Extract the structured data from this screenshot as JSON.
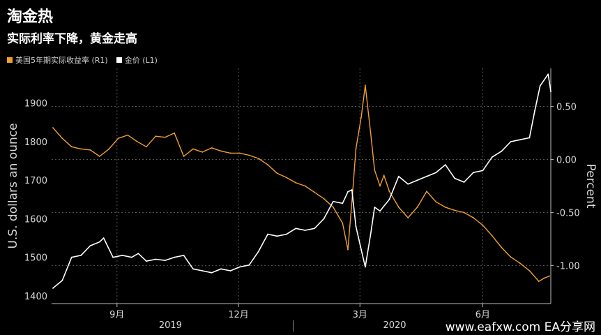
{
  "chart_data": {
    "type": "line",
    "title": "淘金热",
    "subtitle": "实际利率下降，黄金走高",
    "legend": [
      {
        "label": "美国5年期实际收益率 (R1)",
        "color": "#f0a030"
      },
      {
        "label": "金价 (L1)",
        "color": "#ffffff"
      }
    ],
    "ylabel_left": "U.S. dollars an ounce",
    "ylabel_right": "Percent",
    "left_axis": {
      "ticks": [
        1400,
        1500,
        1600,
        1700,
        1800,
        1900
      ],
      "range": [
        1380,
        1990
      ]
    },
    "right_axis": {
      "ticks": [
        "0.50",
        "0.00",
        "-0.50",
        "-1.00"
      ],
      "values": [
        0.5,
        0.0,
        -0.5,
        -1.0
      ],
      "range": [
        -1.36,
        0.86
      ]
    },
    "x_ticks": [
      "9月",
      "12月",
      "3月",
      "6月"
    ],
    "year_labels": [
      "2019",
      "2020"
    ],
    "x_range": [
      "2019-07-28",
      "2020-08-05"
    ],
    "grid": true,
    "series": [
      {
        "name": "美国5年期实际收益率 (R1)",
        "axis": "right",
        "color": "#f0a030",
        "points": [
          [
            "2019-07-29",
            0.3
          ],
          [
            "2019-08-05",
            0.2
          ],
          [
            "2019-08-12",
            0.12
          ],
          [
            "2019-08-19",
            0.1
          ],
          [
            "2019-08-26",
            0.09
          ],
          [
            "2019-09-02",
            0.03
          ],
          [
            "2019-09-09",
            0.1
          ],
          [
            "2019-09-16",
            0.2
          ],
          [
            "2019-09-23",
            0.23
          ],
          [
            "2019-09-30",
            0.17
          ],
          [
            "2019-10-07",
            0.12
          ],
          [
            "2019-10-14",
            0.22
          ],
          [
            "2019-10-21",
            0.21
          ],
          [
            "2019-10-28",
            0.25
          ],
          [
            "2019-11-04",
            0.03
          ],
          [
            "2019-11-11",
            0.1
          ],
          [
            "2019-11-18",
            0.07
          ],
          [
            "2019-11-25",
            0.11
          ],
          [
            "2019-12-02",
            0.08
          ],
          [
            "2019-12-09",
            0.06
          ],
          [
            "2019-12-16",
            0.06
          ],
          [
            "2019-12-23",
            0.04
          ],
          [
            "2019-12-30",
            0.01
          ],
          [
            "2020-01-06",
            -0.05
          ],
          [
            "2020-01-13",
            -0.13
          ],
          [
            "2020-01-20",
            -0.17
          ],
          [
            "2020-01-27",
            -0.22
          ],
          [
            "2020-02-03",
            -0.25
          ],
          [
            "2020-02-10",
            -0.31
          ],
          [
            "2020-02-17",
            -0.37
          ],
          [
            "2020-02-24",
            -0.45
          ],
          [
            "2020-03-02",
            -0.6
          ],
          [
            "2020-03-06",
            -0.85
          ],
          [
            "2020-03-09",
            -0.4
          ],
          [
            "2020-03-12",
            0.1
          ],
          [
            "2020-03-16",
            0.4
          ],
          [
            "2020-03-19",
            0.7
          ],
          [
            "2020-03-23",
            0.25
          ],
          [
            "2020-03-26",
            -0.1
          ],
          [
            "2020-03-30",
            -0.25
          ],
          [
            "2020-04-02",
            -0.15
          ],
          [
            "2020-04-06",
            -0.3
          ],
          [
            "2020-04-13",
            -0.45
          ],
          [
            "2020-04-20",
            -0.55
          ],
          [
            "2020-04-27",
            -0.45
          ],
          [
            "2020-05-04",
            -0.3
          ],
          [
            "2020-05-11",
            -0.4
          ],
          [
            "2020-05-18",
            -0.45
          ],
          [
            "2020-05-25",
            -0.48
          ],
          [
            "2020-06-01",
            -0.5
          ],
          [
            "2020-06-08",
            -0.55
          ],
          [
            "2020-06-15",
            -0.62
          ],
          [
            "2020-06-22",
            -0.72
          ],
          [
            "2020-06-29",
            -0.83
          ],
          [
            "2020-07-06",
            -0.92
          ],
          [
            "2020-07-13",
            -0.98
          ],
          [
            "2020-07-20",
            -1.05
          ],
          [
            "2020-07-27",
            -1.15
          ],
          [
            "2020-07-31",
            -1.12
          ],
          [
            "2020-08-04",
            -1.1
          ]
        ]
      },
      {
        "name": "金价 (L1)",
        "axis": "left",
        "color": "#ffffff",
        "points": [
          [
            "2019-07-29",
            1420
          ],
          [
            "2019-08-05",
            1440
          ],
          [
            "2019-08-12",
            1500
          ],
          [
            "2019-08-19",
            1505
          ],
          [
            "2019-08-26",
            1530
          ],
          [
            "2019-09-02",
            1540
          ],
          [
            "2019-09-05",
            1550
          ],
          [
            "2019-09-12",
            1500
          ],
          [
            "2019-09-19",
            1505
          ],
          [
            "2019-09-26",
            1500
          ],
          [
            "2019-10-01",
            1510
          ],
          [
            "2019-10-07",
            1490
          ],
          [
            "2019-10-14",
            1495
          ],
          [
            "2019-10-21",
            1492
          ],
          [
            "2019-10-28",
            1500
          ],
          [
            "2019-11-04",
            1505
          ],
          [
            "2019-11-11",
            1470
          ],
          [
            "2019-11-18",
            1465
          ],
          [
            "2019-11-25",
            1460
          ],
          [
            "2019-12-02",
            1470
          ],
          [
            "2019-12-09",
            1465
          ],
          [
            "2019-12-16",
            1475
          ],
          [
            "2019-12-23",
            1480
          ],
          [
            "2019-12-30",
            1515
          ],
          [
            "2020-01-06",
            1560
          ],
          [
            "2020-01-13",
            1555
          ],
          [
            "2020-01-20",
            1560
          ],
          [
            "2020-01-27",
            1575
          ],
          [
            "2020-02-03",
            1570
          ],
          [
            "2020-02-10",
            1575
          ],
          [
            "2020-02-17",
            1600
          ],
          [
            "2020-02-24",
            1645
          ],
          [
            "2020-03-02",
            1640
          ],
          [
            "2020-03-06",
            1670
          ],
          [
            "2020-03-09",
            1675
          ],
          [
            "2020-03-12",
            1580
          ],
          [
            "2020-03-16",
            1520
          ],
          [
            "2020-03-19",
            1475
          ],
          [
            "2020-03-23",
            1560
          ],
          [
            "2020-03-26",
            1630
          ],
          [
            "2020-03-30",
            1620
          ],
          [
            "2020-04-06",
            1650
          ],
          [
            "2020-04-13",
            1710
          ],
          [
            "2020-04-20",
            1690
          ],
          [
            "2020-04-27",
            1700
          ],
          [
            "2020-05-04",
            1710
          ],
          [
            "2020-05-11",
            1720
          ],
          [
            "2020-05-18",
            1740
          ],
          [
            "2020-05-25",
            1705
          ],
          [
            "2020-06-01",
            1695
          ],
          [
            "2020-06-08",
            1720
          ],
          [
            "2020-06-15",
            1725
          ],
          [
            "2020-06-22",
            1760
          ],
          [
            "2020-06-29",
            1775
          ],
          [
            "2020-07-06",
            1800
          ],
          [
            "2020-07-13",
            1805
          ],
          [
            "2020-07-20",
            1810
          ],
          [
            "2020-07-24",
            1880
          ],
          [
            "2020-07-28",
            1945
          ],
          [
            "2020-08-03",
            1975
          ],
          [
            "2020-08-05",
            1930
          ]
        ]
      }
    ]
  },
  "watermark": "www.eafxw.com   EA分享网"
}
